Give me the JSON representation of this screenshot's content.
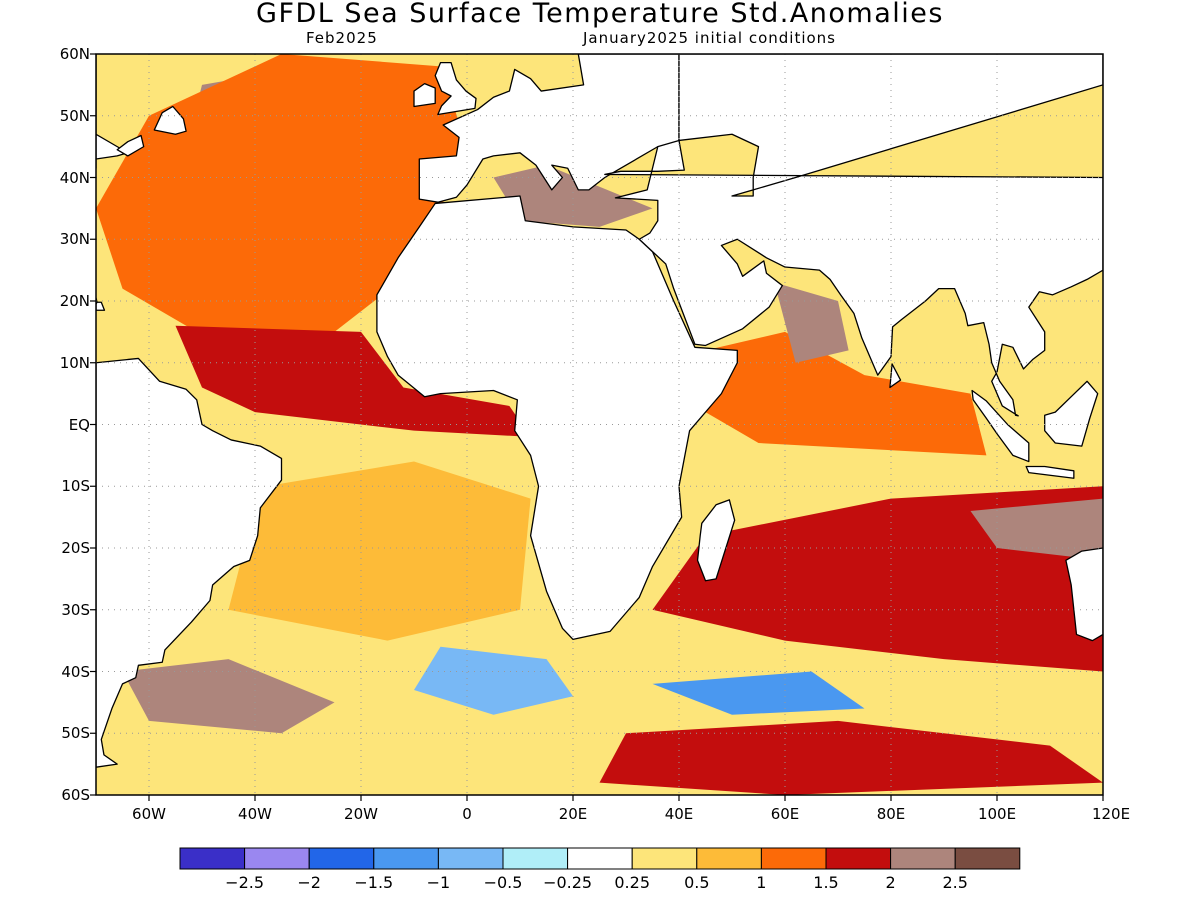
{
  "title": "GFDL Sea Surface Temperature Std.Anomalies",
  "subtitle_left": "Feb2025",
  "subtitle_right": "January2025 initial conditions",
  "map": {
    "lon_range": [
      -70,
      120
    ],
    "lat_range": [
      -60,
      60
    ],
    "lat_labels": [
      "60N",
      "50N",
      "40N",
      "30N",
      "20N",
      "10N",
      "EQ",
      "10S",
      "20S",
      "30S",
      "40S",
      "50S",
      "60S"
    ],
    "lon_labels": [
      "60W",
      "40W",
      "20W",
      "0",
      "20E",
      "40E",
      "60E",
      "80E",
      "100E",
      "120E"
    ],
    "lat_values": [
      60,
      50,
      40,
      30,
      20,
      10,
      0,
      -10,
      -20,
      -30,
      -40,
      -50,
      -60
    ],
    "lon_values": [
      -60,
      -40,
      -20,
      0,
      20,
      40,
      60,
      80,
      100,
      120
    ],
    "grid": true,
    "anomaly_regions": [
      {
        "name": "north-atlantic-warm",
        "category": "2.5",
        "points": [
          [
            -50,
            55
          ],
          [
            -30,
            58
          ],
          [
            -15,
            56
          ],
          [
            -8,
            48
          ],
          [
            -15,
            40
          ],
          [
            -25,
            35
          ],
          [
            -40,
            30
          ],
          [
            -55,
            38
          ]
        ]
      },
      {
        "name": "north-atlantic-ring",
        "category": "1.5",
        "points": [
          [
            -60,
            50
          ],
          [
            -35,
            60
          ],
          [
            -5,
            58
          ],
          [
            0,
            45
          ],
          [
            -10,
            25
          ],
          [
            -25,
            15
          ],
          [
            -45,
            12
          ],
          [
            -65,
            22
          ],
          [
            -70,
            35
          ]
        ]
      },
      {
        "name": "tropical-atlantic-warm",
        "category": "2",
        "points": [
          [
            -55,
            16
          ],
          [
            -20,
            15
          ],
          [
            -12,
            6
          ],
          [
            8,
            3
          ],
          [
            12,
            -2
          ],
          [
            -10,
            -1
          ],
          [
            -40,
            2
          ],
          [
            -50,
            6
          ]
        ]
      },
      {
        "name": "south-atlantic-mild",
        "category": "0.5",
        "points": [
          [
            -38,
            -10
          ],
          [
            -10,
            -6
          ],
          [
            12,
            -12
          ],
          [
            10,
            -30
          ],
          [
            -15,
            -35
          ],
          [
            -45,
            -30
          ],
          [
            -42,
            -20
          ]
        ]
      },
      {
        "name": "south-atlantic-cool",
        "category": "-0.5",
        "points": [
          [
            -5,
            -36
          ],
          [
            15,
            -38
          ],
          [
            20,
            -44
          ],
          [
            5,
            -47
          ],
          [
            -10,
            -43
          ]
        ]
      },
      {
        "name": "southern-ocean-warm",
        "category": "2.5",
        "points": [
          [
            -65,
            -40
          ],
          [
            -45,
            -38
          ],
          [
            -25,
            -45
          ],
          [
            -35,
            -50
          ],
          [
            -60,
            -48
          ]
        ]
      },
      {
        "name": "southern-ocean-east",
        "category": "2",
        "points": [
          [
            30,
            -50
          ],
          [
            70,
            -48
          ],
          [
            110,
            -52
          ],
          [
            120,
            -58
          ],
          [
            60,
            -60
          ],
          [
            25,
            -58
          ]
        ]
      },
      {
        "name": "indian-ocean-warm",
        "category": "2",
        "points": [
          [
            45,
            -18
          ],
          [
            80,
            -12
          ],
          [
            120,
            -10
          ],
          [
            120,
            -40
          ],
          [
            90,
            -38
          ],
          [
            60,
            -35
          ],
          [
            35,
            -30
          ]
        ]
      },
      {
        "name": "indian-ocean-core",
        "category": "2.5",
        "points": [
          [
            95,
            -14
          ],
          [
            120,
            -12
          ],
          [
            120,
            -22
          ],
          [
            100,
            -20
          ]
        ]
      },
      {
        "name": "indian-cool",
        "category": "-1",
        "points": [
          [
            35,
            -42
          ],
          [
            65,
            -40
          ],
          [
            75,
            -46
          ],
          [
            50,
            -47
          ]
        ]
      },
      {
        "name": "indian-north-warm",
        "category": "1.5",
        "points": [
          [
            45,
            12
          ],
          [
            60,
            15
          ],
          [
            75,
            8
          ],
          [
            95,
            5
          ],
          [
            98,
            -5
          ],
          [
            55,
            -3
          ],
          [
            45,
            2
          ]
        ]
      },
      {
        "name": "arabian-sea-warm",
        "category": "2.5",
        "points": [
          [
            58,
            23
          ],
          [
            70,
            20
          ],
          [
            72,
            12
          ],
          [
            62,
            10
          ]
        ]
      },
      {
        "name": "mediterranean-warm",
        "category": "2.5",
        "points": [
          [
            5,
            40
          ],
          [
            15,
            42
          ],
          [
            35,
            35
          ],
          [
            25,
            32
          ],
          [
            10,
            33
          ]
        ]
      }
    ]
  },
  "colorbar": {
    "colors": [
      "#3a2fc8",
      "#9a87f0",
      "#2266e8",
      "#4a98f0",
      "#78b8f5",
      "#b0eef8",
      "#ffffff",
      "#fde57a",
      "#fdbb38",
      "#fc6a08",
      "#c30d0d",
      "#ad857c",
      "#7a4d41"
    ],
    "labels": [
      "−2.5",
      "−2",
      "−1.5",
      "−1",
      "−0.5",
      "−0.25",
      "0.25",
      "0.5",
      "1",
      "1.5",
      "2",
      "2.5"
    ]
  }
}
